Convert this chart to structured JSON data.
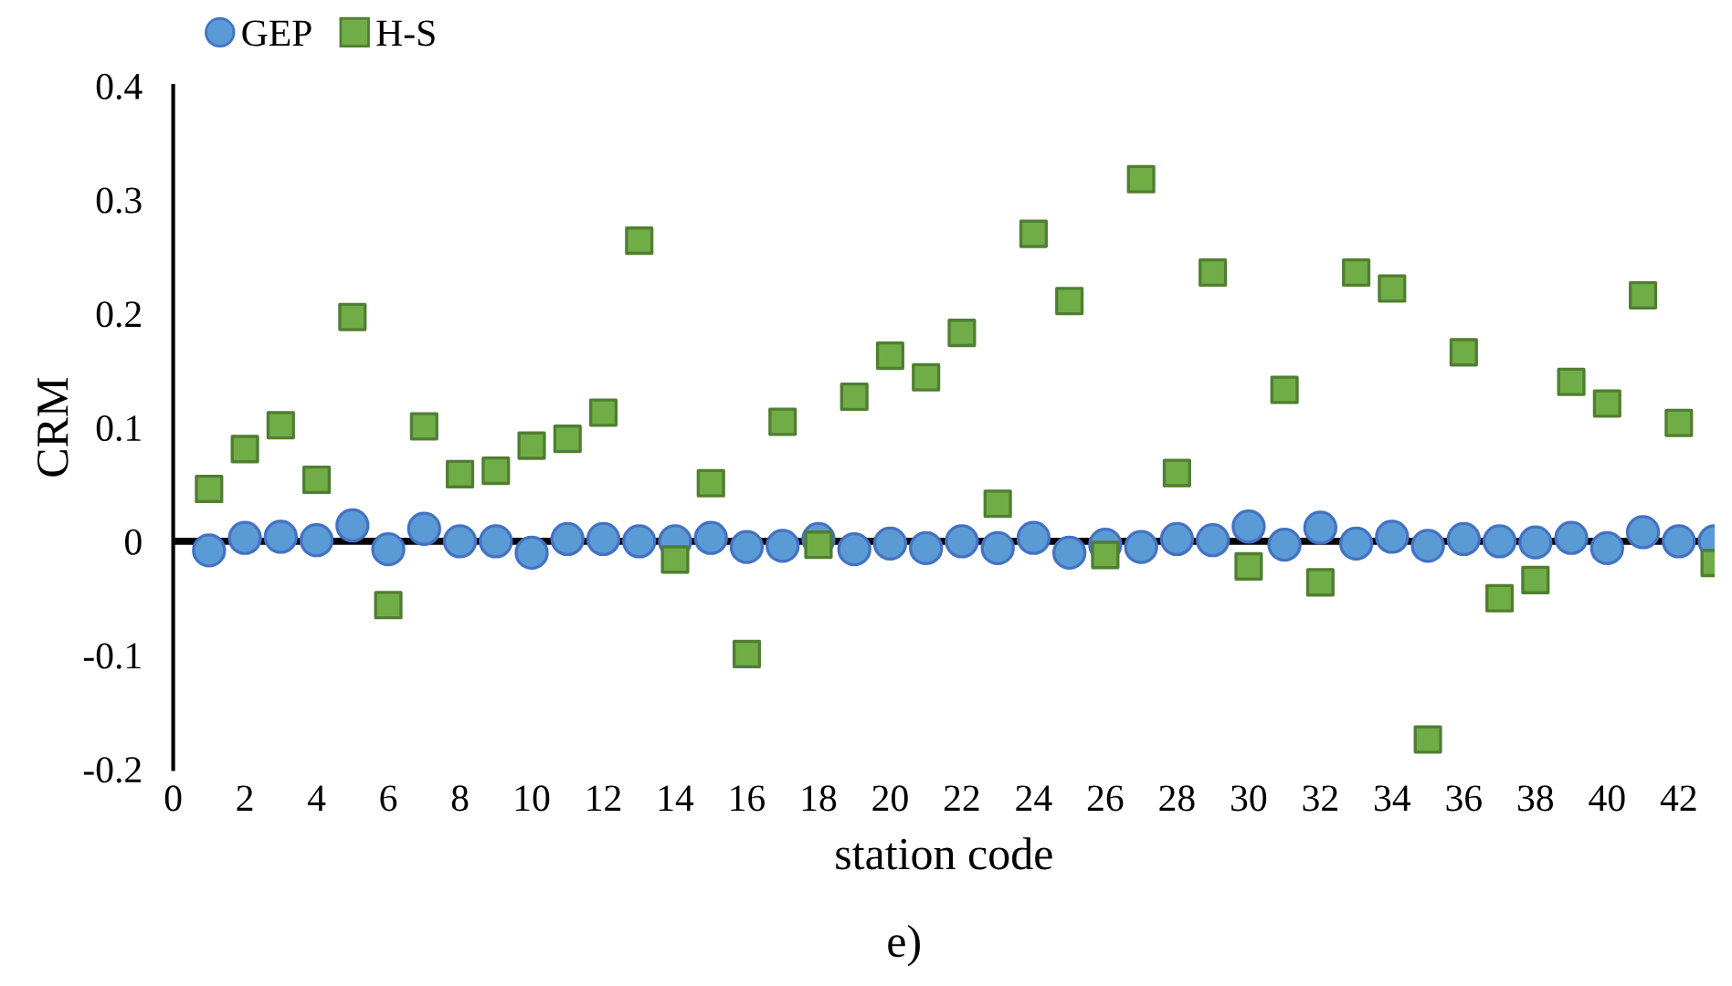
{
  "chart_data": {
    "type": "scatter",
    "xlabel": "station code",
    "ylabel": "CRM",
    "x": [
      1,
      2,
      3,
      4,
      5,
      6,
      7,
      8,
      9,
      10,
      11,
      12,
      13,
      14,
      15,
      16,
      17,
      18,
      19,
      20,
      21,
      22,
      23,
      24,
      25,
      26,
      27,
      28,
      29,
      30,
      31,
      32,
      33,
      34,
      35,
      36,
      37,
      38,
      39,
      40,
      41,
      42,
      43
    ],
    "series": [
      {
        "name": "GEP",
        "color": "#5b9bd5",
        "marker": "circle",
        "values": [
          -0.008,
          0.003,
          0.004,
          0.001,
          0.014,
          -0.007,
          0.011,
          0,
          0,
          -0.01,
          0.002,
          0.002,
          0,
          0,
          0.003,
          -0.005,
          -0.004,
          0.002,
          -0.007,
          -0.002,
          -0.006,
          0,
          -0.006,
          0.003,
          -0.01,
          -0.003,
          -0.005,
          0.002,
          0.001,
          0.013,
          -0.003,
          0.012,
          -0.002,
          0.004,
          -0.004,
          0.002,
          0,
          -0.001,
          0.003,
          -0.006,
          0.008,
          0,
          0
        ]
      },
      {
        "name": "H-S",
        "color": "#70ad47",
        "marker": "square",
        "values": [
          0.046,
          0.081,
          0.102,
          0.054,
          0.197,
          -0.056,
          0.101,
          0.059,
          0.062,
          0.084,
          0.09,
          0.113,
          0.264,
          -0.016,
          0.051,
          -0.099,
          0.105,
          -0.003,
          0.127,
          0.163,
          0.144,
          0.183,
          0.033,
          0.27,
          0.211,
          -0.012,
          0.318,
          0.06,
          0.236,
          -0.022,
          0.133,
          -0.036,
          0.236,
          0.222,
          -0.174,
          0.166,
          -0.05,
          -0.034,
          0.14,
          0.121,
          0.216,
          0.104,
          -0.019
        ]
      }
    ],
    "xlim": [
      0,
      43
    ],
    "xticks": [
      0,
      2,
      4,
      6,
      8,
      10,
      12,
      14,
      16,
      18,
      20,
      22,
      24,
      26,
      28,
      30,
      32,
      34,
      36,
      38,
      40,
      42
    ],
    "ylim": [
      -0.2,
      0.4
    ],
    "yticks": [
      {
        "value": -0.2,
        "label": "-0.2"
      },
      {
        "value": -0.1,
        "label": "-0.1"
      },
      0,
      0.1,
      0.2,
      0.3,
      0.4
    ],
    "grid": false,
    "legend": "top left",
    "ref_lines": [
      {
        "axis": "y",
        "value": 0,
        "color": "#000000"
      }
    ],
    "annotations": [
      "e)"
    ]
  }
}
